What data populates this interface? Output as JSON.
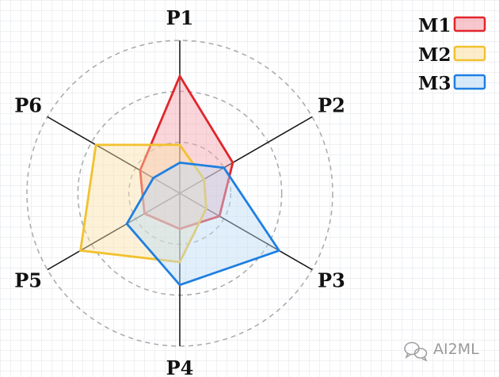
{
  "chart_data": {
    "type": "radar",
    "axes": [
      "P1",
      "P2",
      "P3",
      "P4",
      "P5",
      "P6"
    ],
    "rmax": 6,
    "rings": [
      2,
      4,
      6
    ],
    "series": [
      {
        "name": "M1",
        "color": "#e0262b",
        "fill": "#f3a2ab",
        "values": [
          4.6,
          2.4,
          1.8,
          1.4,
          1.6,
          1.8
        ]
      },
      {
        "name": "M2",
        "color": "#f2c12e",
        "fill": "#fbe3a8",
        "values": [
          1.9,
          1.1,
          1.2,
          2.7,
          4.5,
          3.8
        ]
      },
      {
        "name": "M3",
        "color": "#1f7fe0",
        "fill": "#bcdcf7",
        "values": [
          1.2,
          2.0,
          4.5,
          3.6,
          2.4,
          1.2
        ]
      }
    ],
    "legend": {
      "position": "top-right"
    }
  },
  "watermark": {
    "text": "AI2ML",
    "icon": "wechat-icon"
  }
}
